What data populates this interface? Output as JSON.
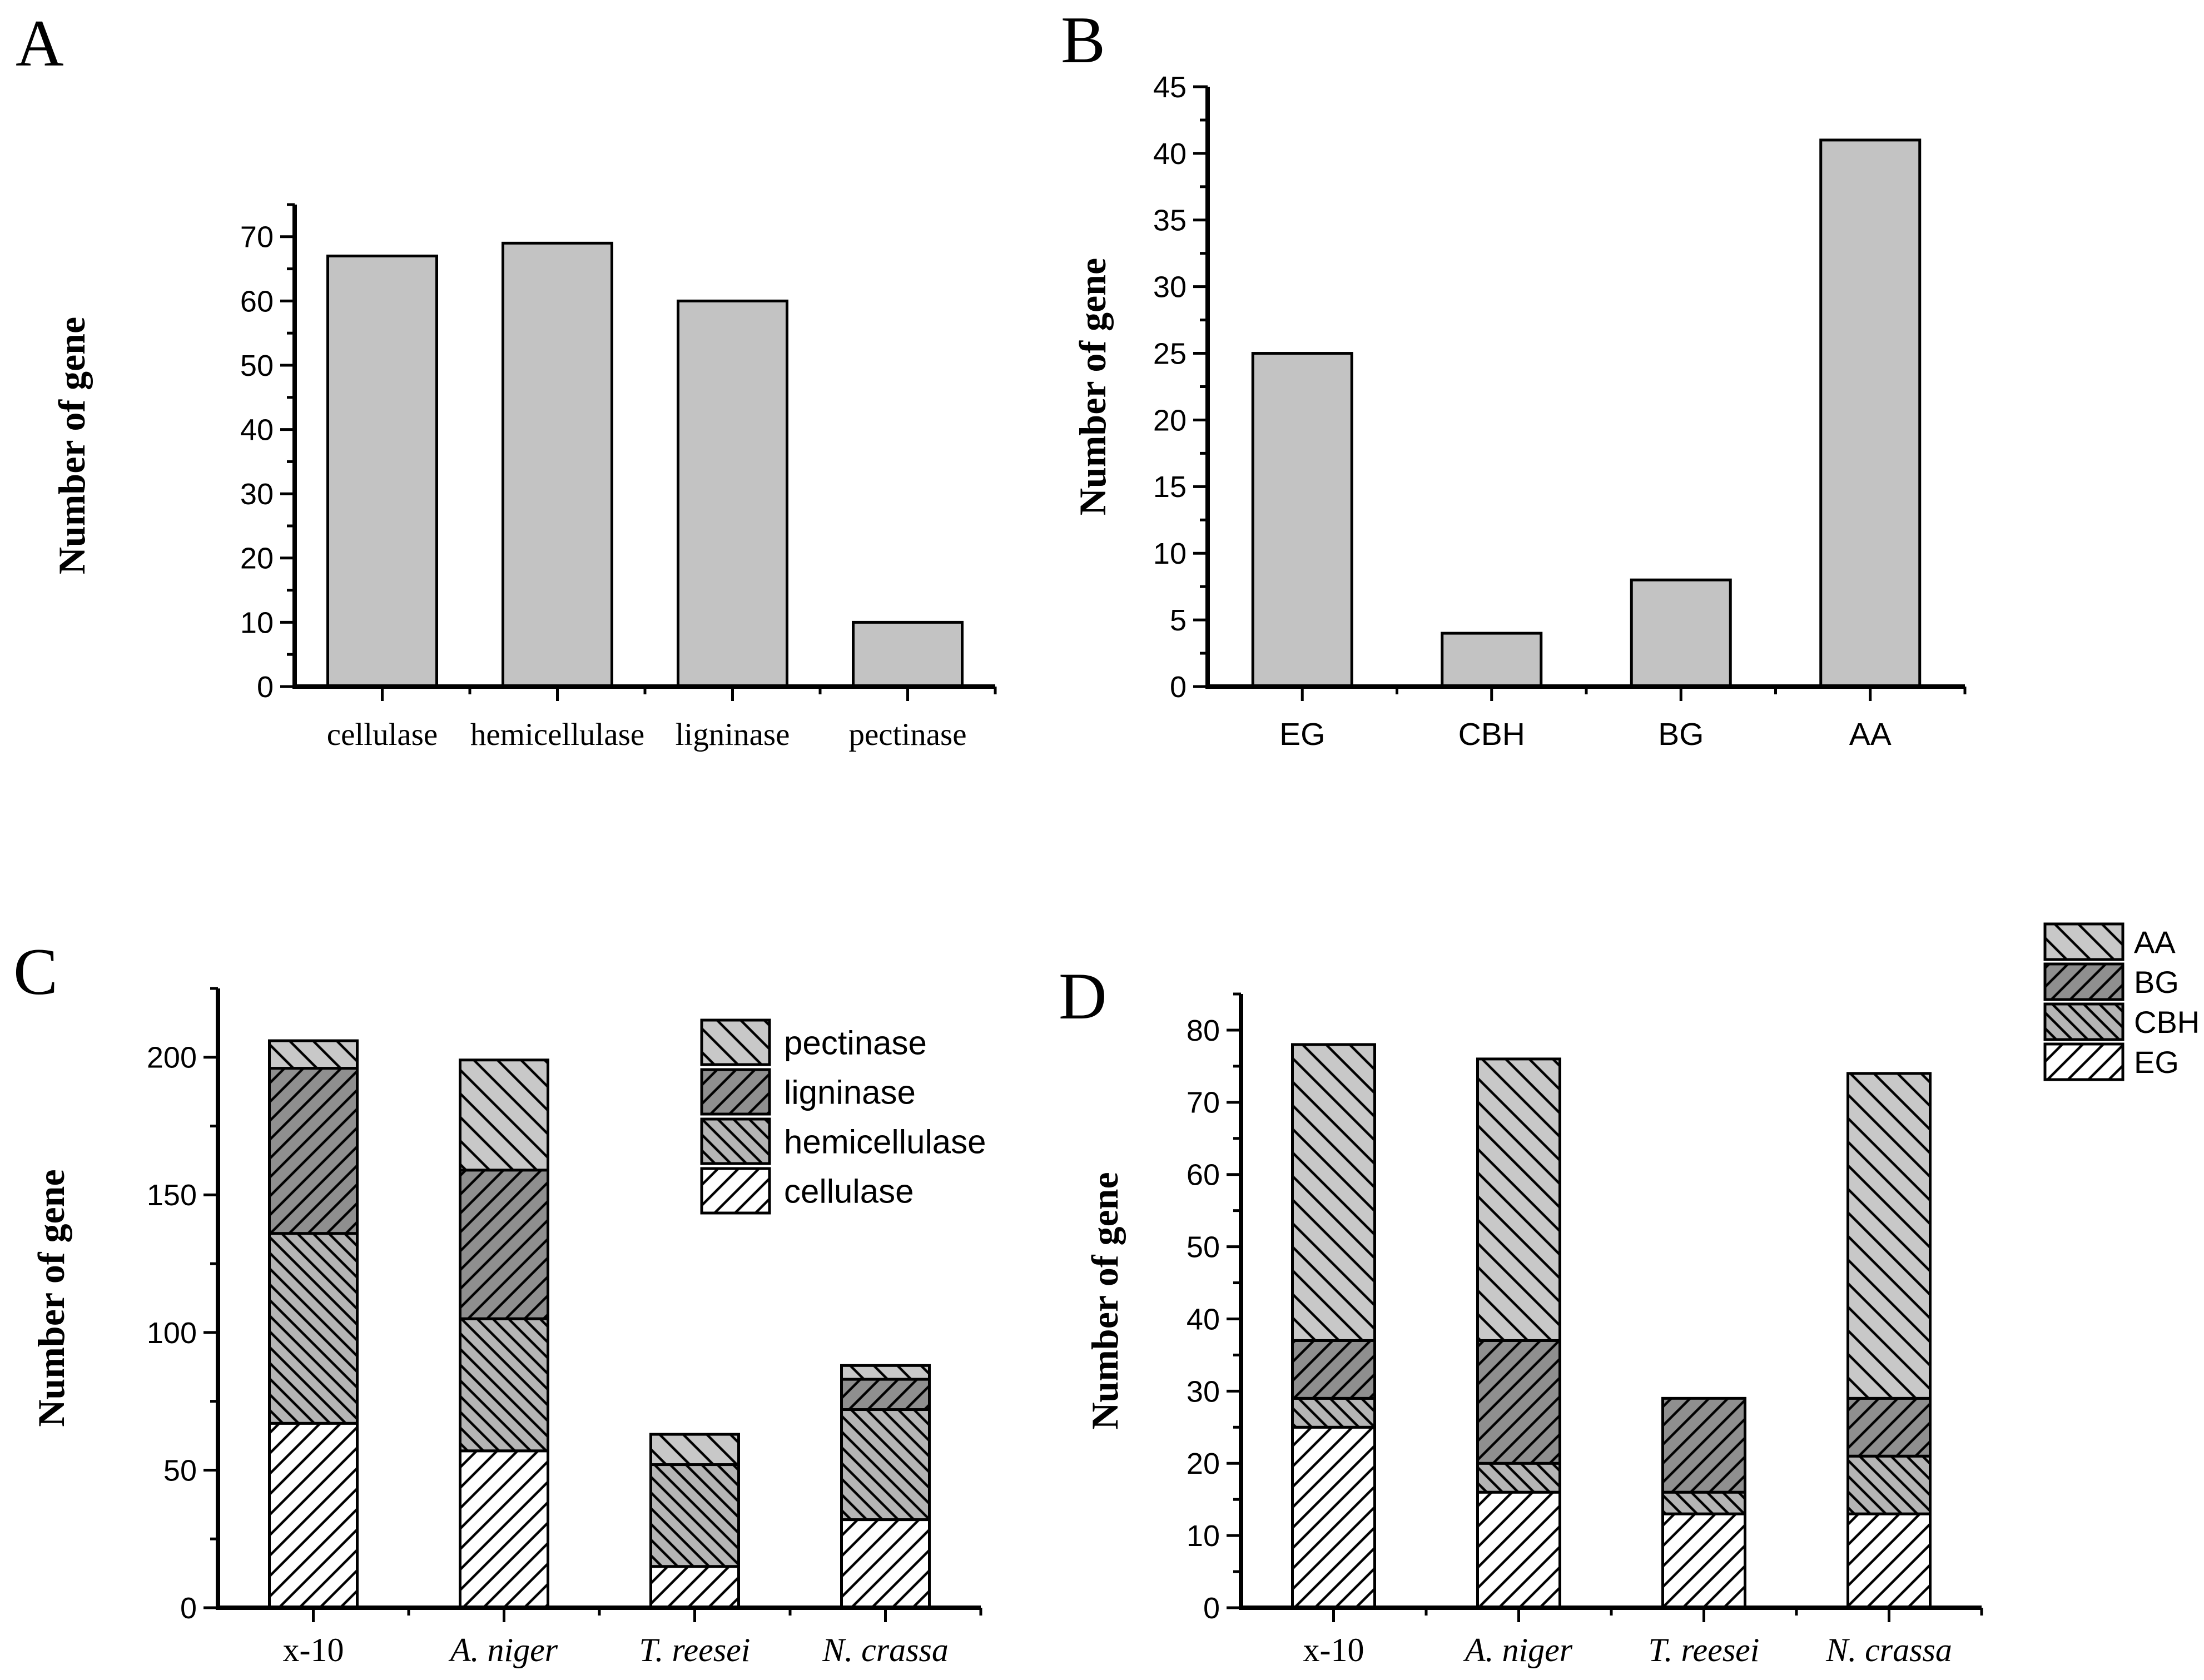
{
  "figure": {
    "background": "#ffffff",
    "panel_letters": [
      "A",
      "B",
      "C",
      "D"
    ]
  },
  "chart_data": [
    {
      "panel_label": "A",
      "type": "bar",
      "title": "",
      "xlabel": "",
      "ylabel": "Number of gene",
      "categories": [
        "cellulase",
        "hemicellulase",
        "ligninase",
        "pectinase"
      ],
      "categories_italic": [
        false,
        false,
        false,
        false
      ],
      "category_font": "serif",
      "values": [
        67,
        69,
        60,
        10
      ],
      "ylim": [
        0,
        75
      ],
      "ymajor": 10,
      "yminor": 5,
      "yticks": [
        0,
        10,
        20,
        30,
        40,
        50,
        60,
        70
      ],
      "bar_fill": "#c3c3c3",
      "bar_border": "#000000",
      "grid": false,
      "legend_position": "none"
    },
    {
      "panel_label": "B",
      "type": "bar",
      "title": "",
      "xlabel": "",
      "ylabel": "Number of gene",
      "categories": [
        "EG",
        "CBH",
        "BG",
        "AA"
      ],
      "categories_italic": [
        false,
        false,
        false,
        false
      ],
      "category_font": "sans",
      "values": [
        25,
        4,
        8,
        41
      ],
      "ylim": [
        0,
        45
      ],
      "ymajor": 5,
      "yminor": 2.5,
      "yticks": [
        0,
        5,
        10,
        15,
        20,
        25,
        30,
        35,
        40,
        45
      ],
      "bar_fill": "#c3c3c3",
      "bar_border": "#000000",
      "grid": false,
      "legend_position": "none"
    },
    {
      "panel_label": "C",
      "type": "stacked-bar",
      "title": "",
      "xlabel": "",
      "ylabel": "Number of gene",
      "categories": [
        "x-10",
        "A. niger",
        "T. reesei",
        "N. crassa"
      ],
      "categories_italic": [
        false,
        true,
        true,
        true
      ],
      "category_font": "serif",
      "series": [
        {
          "name": "cellulase",
          "values": [
            67,
            57,
            15,
            32
          ],
          "fill": "#ffffff",
          "hatch": "forward",
          "hatch_spacing": 26
        },
        {
          "name": "hemicellulase",
          "values": [
            69,
            48,
            37,
            40
          ],
          "fill": "#b5b5b5",
          "hatch": "backward",
          "hatch_spacing": 20
        },
        {
          "name": "ligninase",
          "values": [
            60,
            54,
            0,
            11
          ],
          "fill": "#8f8f8f",
          "hatch": "forward",
          "hatch_spacing": 24
        },
        {
          "name": "pectinase",
          "values": [
            10,
            40,
            11,
            5
          ],
          "fill": "#c8c8c8",
          "hatch": "backward",
          "hatch_spacing": 30
        }
      ],
      "stack_totals": [
        206,
        199,
        63,
        88
      ],
      "ylim": [
        0,
        225
      ],
      "ymajor": 50,
      "yminor": 25,
      "yticks": [
        0,
        50,
        100,
        150,
        200
      ],
      "bar_border": "#000000",
      "legend": [
        "pectinase",
        "ligninase",
        "hemicellulase",
        "cellulase"
      ],
      "legend_position": "top-right",
      "grid": false
    },
    {
      "panel_label": "D",
      "type": "stacked-bar",
      "title": "",
      "xlabel": "",
      "ylabel": "Number of gene",
      "categories": [
        "x-10",
        "A. niger",
        "T. reesei",
        "N. crassa"
      ],
      "categories_italic": [
        false,
        true,
        true,
        true
      ],
      "category_font": "serif",
      "series": [
        {
          "name": "EG",
          "values": [
            25,
            16,
            13,
            13
          ],
          "fill": "#ffffff",
          "hatch": "forward",
          "hatch_spacing": 26
        },
        {
          "name": "CBH",
          "values": [
            4,
            4,
            3,
            8
          ],
          "fill": "#b5b5b5",
          "hatch": "backward",
          "hatch_spacing": 20
        },
        {
          "name": "BG",
          "values": [
            8,
            17,
            13,
            8
          ],
          "fill": "#8f8f8f",
          "hatch": "forward",
          "hatch_spacing": 24
        },
        {
          "name": "AA",
          "values": [
            41,
            39,
            0,
            45
          ],
          "fill": "#c8c8c8",
          "hatch": "backward",
          "hatch_spacing": 30
        }
      ],
      "stack_totals": [
        78,
        76,
        29,
        74
      ],
      "ylim": [
        0,
        85
      ],
      "ymajor": 10,
      "yminor": 5,
      "yticks": [
        0,
        10,
        20,
        30,
        40,
        50,
        60,
        70,
        80
      ],
      "bar_border": "#000000",
      "legend": [
        "AA",
        "BG",
        "CBH",
        "EG"
      ],
      "legend_position": "top-right",
      "grid": false
    }
  ]
}
